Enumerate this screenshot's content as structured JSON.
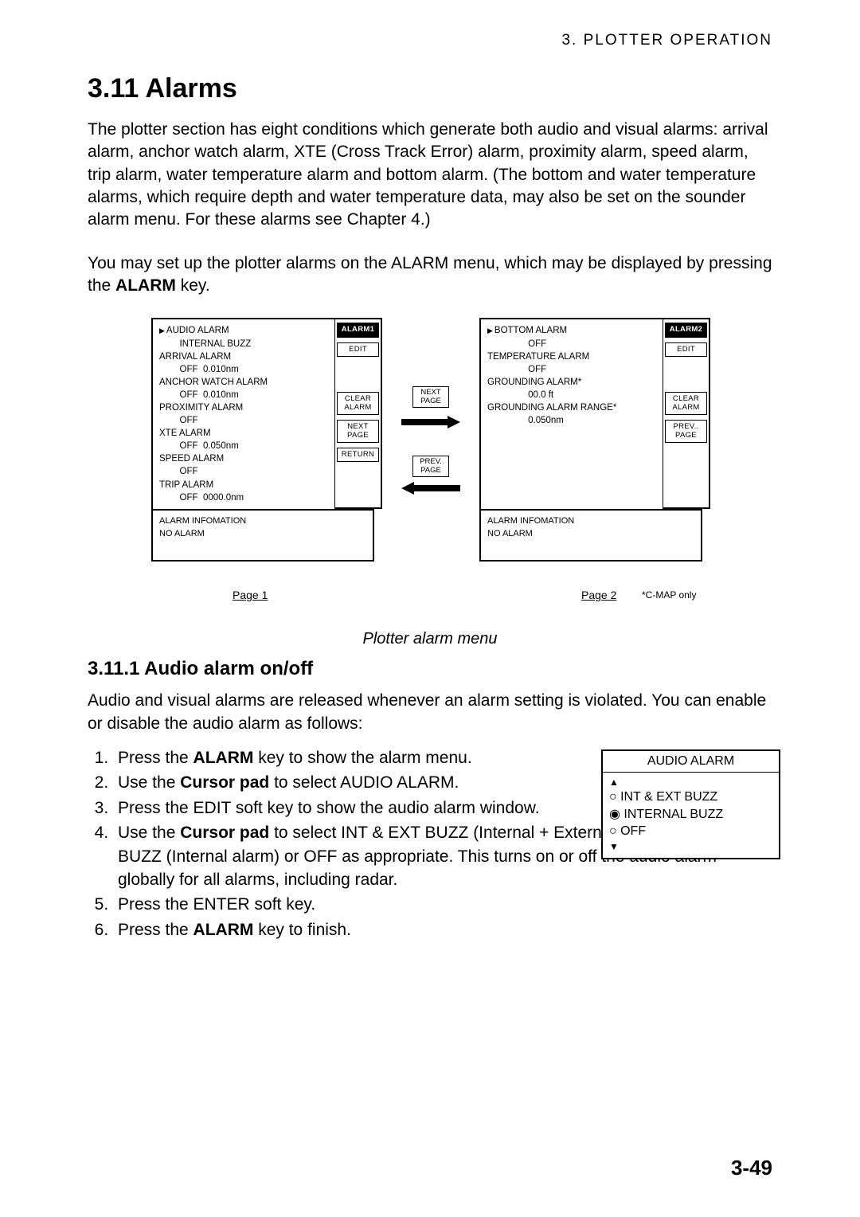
{
  "header": {
    "chapter": "3.  PLOTTER  OPERATION"
  },
  "title": "3.11  Alarms",
  "para1": "The plotter section has eight conditions which generate both audio and visual alarms: arrival alarm, anchor watch alarm, XTE (Cross Track Error) alarm, proximity alarm, speed alarm, trip alarm, water temperature alarm and bottom alarm. (The bottom and water temperature alarms, which require depth and water temperature data, may also be set on the sounder alarm menu. For these alarms see Chapter 4.)",
  "para2_a": "You may set up the plotter alarms on the ALARM menu, which may be displayed by pressing the ",
  "para2_b": "ALARM",
  "para2_c": " key.",
  "figure": {
    "panel1": {
      "lines": [
        {
          "sel": true,
          "text": "AUDIO ALARM"
        },
        {
          "sel": false,
          "text": "        INTERNAL BUZZ"
        },
        {
          "sel": false,
          "text": "ARRIVAL ALARM"
        },
        {
          "sel": false,
          "text": "        OFF  0.010nm"
        },
        {
          "sel": false,
          "text": "ANCHOR WATCH ALARM"
        },
        {
          "sel": false,
          "text": "        OFF  0.010nm"
        },
        {
          "sel": false,
          "text": "PROXIMITY ALARM"
        },
        {
          "sel": false,
          "text": "        OFF"
        },
        {
          "sel": false,
          "text": "XTE ALARM"
        },
        {
          "sel": false,
          "text": "        OFF  0.050nm"
        },
        {
          "sel": false,
          "text": "SPEED ALARM"
        },
        {
          "sel": false,
          "text": "        OFF"
        },
        {
          "sel": false,
          "text": ""
        },
        {
          "sel": false,
          "text": "TRIP ALARM"
        },
        {
          "sel": false,
          "text": "        OFF  0000.0nm"
        }
      ],
      "soft": [
        "ALARM1",
        "EDIT",
        "",
        "CLEAR\nALARM",
        "NEXT\nPAGE",
        "RETURN"
      ],
      "info1": "ALARM INFOMATION",
      "info2": " NO ALARM",
      "pagelabel": "Page 1"
    },
    "nav": {
      "next": "NEXT\nPAGE",
      "prev": "PREV.\nPAGE"
    },
    "panel2": {
      "lines": [
        {
          "sel": true,
          "text": "BOTTOM ALARM"
        },
        {
          "sel": false,
          "text": "                OFF"
        },
        {
          "sel": false,
          "text": "TEMPERATURE ALARM"
        },
        {
          "sel": false,
          "text": "                OFF"
        },
        {
          "sel": false,
          "text": ""
        },
        {
          "sel": false,
          "text": "GROUNDING ALARM*"
        },
        {
          "sel": false,
          "text": "                00.0 ft"
        },
        {
          "sel": false,
          "text": "GROUNDING ALARM RANGE*"
        },
        {
          "sel": false,
          "text": "                0.050nm"
        }
      ],
      "soft": [
        "ALARM2",
        "EDIT",
        "",
        "CLEAR\nALARM",
        "PREV..\nPAGE"
      ],
      "info1": "ALARM INFOMATION",
      "info2": " NO ALARM",
      "pagelabel": "Page 2",
      "cmap": "*C-MAP only"
    },
    "caption": "Plotter alarm menu"
  },
  "sub": {
    "title": "3.11.1  Audio alarm on/off",
    "para": "Audio and visual alarms are released whenever an alarm setting is violated. You can enable or disable the audio alarm as follows:",
    "steps": {
      "s1a": "Press the ",
      "s1b": "ALARM",
      "s1c": " key to show the alarm menu.",
      "s2a": "Use the ",
      "s2b": "Cursor pad",
      "s2c": " to select AUDIO ALARM.",
      "s3": "Press the EDIT soft key to show the audio alarm window.",
      "s4a": "Use the ",
      "s4b": "Cursor pad",
      "s4c": " to select INT & EXT BUZZ (Internal + External alarm), INTERNAL BUZZ (Internal alarm) or OFF as appropriate. This turns on or off the audio alarm globally for all alarms, including radar.",
      "s5": "Press the ENTER soft key.",
      "s6a": "Press the ",
      "s6b": "ALARM",
      "s6c": " key to finish."
    },
    "audiowin": {
      "title": "AUDIO ALARM",
      "opts": [
        "INT & EXT BUZZ",
        "INTERNAL BUZZ",
        "OFF"
      ],
      "selected": 1
    }
  },
  "footer": "3-49"
}
